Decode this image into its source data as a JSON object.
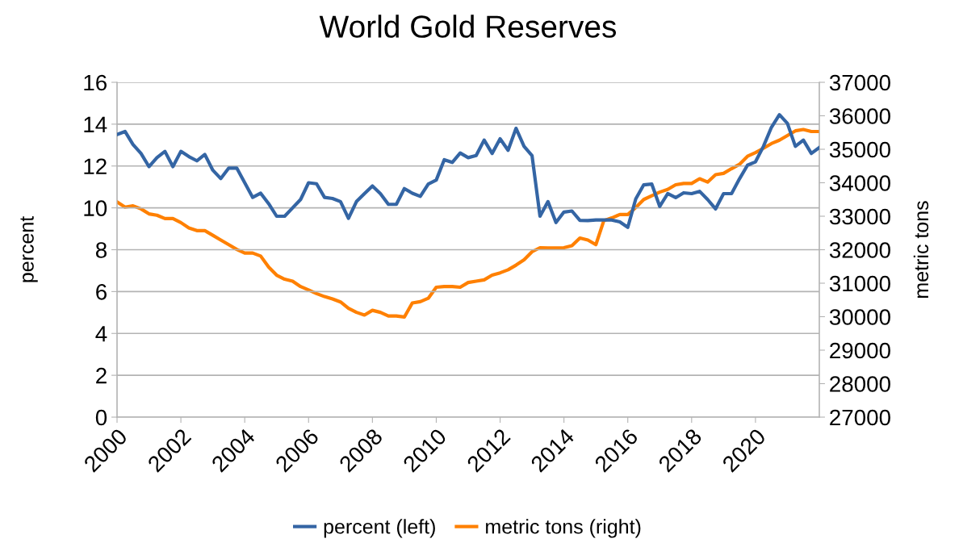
{
  "chart_data": {
    "type": "line",
    "title": "World Gold Reserves",
    "ylabel": "percent",
    "y2label": "metric tons",
    "x": [
      2000.0,
      2000.25,
      2000.5,
      2000.75,
      2001.0,
      2001.25,
      2001.5,
      2001.75,
      2002.0,
      2002.25,
      2002.5,
      2002.75,
      2003.0,
      2003.25,
      2003.5,
      2003.75,
      2004.0,
      2004.25,
      2004.5,
      2004.75,
      2005.0,
      2005.25,
      2005.5,
      2005.75,
      2006.0,
      2006.25,
      2006.5,
      2006.75,
      2007.0,
      2007.25,
      2007.5,
      2007.75,
      2008.0,
      2008.25,
      2008.5,
      2008.75,
      2009.0,
      2009.25,
      2009.5,
      2009.75,
      2010.0,
      2010.25,
      2010.5,
      2010.75,
      2011.0,
      2011.25,
      2011.5,
      2011.75,
      2012.0,
      2012.25,
      2012.5,
      2012.75,
      2013.0,
      2013.25,
      2013.5,
      2013.75,
      2014.0,
      2014.25,
      2014.5,
      2014.75,
      2015.0,
      2015.25,
      2015.5,
      2015.75,
      2016.0,
      2016.25,
      2016.5,
      2016.75,
      2017.0,
      2017.25,
      2017.5,
      2017.75,
      2018.0,
      2018.25,
      2018.5,
      2018.75,
      2019.0,
      2019.25,
      2019.5,
      2019.75,
      2020.0,
      2020.25,
      2020.5,
      2020.75,
      2021.0,
      2021.25,
      2021.5,
      2021.75,
      2022.0
    ],
    "series": [
      {
        "name": "percent (left)",
        "color": "#3465a4",
        "values": [
          13.5,
          13.65,
          13.03,
          12.6,
          11.97,
          12.4,
          12.7,
          11.97,
          12.7,
          12.45,
          12.25,
          12.55,
          11.8,
          11.4,
          11.9,
          11.9,
          11.2,
          10.5,
          10.7,
          10.2,
          9.6,
          9.6,
          10.0,
          10.4,
          11.2,
          11.15,
          10.5,
          10.45,
          10.3,
          9.5,
          10.3,
          10.68,
          11.05,
          10.68,
          10.17,
          10.17,
          10.92,
          10.7,
          10.55,
          11.14,
          11.33,
          12.3,
          12.17,
          12.62,
          12.4,
          12.5,
          13.24,
          12.6,
          13.3,
          12.75,
          13.8,
          12.94,
          12.5,
          9.6,
          10.3,
          9.3,
          9.8,
          9.85,
          9.4,
          9.39,
          9.42,
          9.42,
          9.42,
          9.33,
          9.07,
          10.43,
          11.1,
          11.14,
          10.07,
          10.68,
          10.49,
          10.72,
          10.68,
          10.79,
          10.4,
          9.95,
          10.68,
          10.68,
          11.39,
          12.04,
          12.2,
          12.94,
          13.85,
          14.45,
          14.04,
          12.94,
          13.24,
          12.6,
          12.88
        ]
      },
      {
        "name": "metric tons (right)",
        "color": "#ff8000",
        "axis": "y2",
        "values": [
          33430,
          33270,
          33310,
          33220,
          33070,
          33030,
          32930,
          32930,
          32810,
          32650,
          32570,
          32570,
          32430,
          32290,
          32150,
          32010,
          31900,
          31900,
          31810,
          31480,
          31240,
          31120,
          31060,
          30900,
          30800,
          30690,
          30600,
          30530,
          30440,
          30250,
          30130,
          30050,
          30190,
          30130,
          30020,
          30020,
          29990,
          30410,
          30450,
          30550,
          30880,
          30900,
          30900,
          30880,
          31020,
          31060,
          31100,
          31240,
          31310,
          31400,
          31540,
          31700,
          31940,
          32060,
          32050,
          32050,
          32060,
          32120,
          32350,
          32290,
          32150,
          32870,
          32950,
          33050,
          33050,
          33260,
          33500,
          33610,
          33720,
          33800,
          33940,
          33980,
          33980,
          34120,
          34020,
          34240,
          34280,
          34420,
          34550,
          34790,
          34900,
          35030,
          35170,
          35270,
          35410,
          35550,
          35590,
          35530,
          35530
        ]
      }
    ],
    "xlim": [
      2000,
      2022
    ],
    "xticks": [
      2000,
      2002,
      2004,
      2006,
      2008,
      2010,
      2012,
      2014,
      2016,
      2018,
      2020
    ],
    "ylim": [
      0,
      16
    ],
    "yticks": [
      0,
      2,
      4,
      6,
      8,
      10,
      12,
      14,
      16
    ],
    "y2lim": [
      27000,
      37000
    ],
    "y2ticks": [
      27000,
      28000,
      29000,
      30000,
      31000,
      32000,
      33000,
      34000,
      35000,
      36000,
      37000
    ],
    "grid": "y",
    "legend": "bottom",
    "marker": "none",
    "line_style": "solid"
  }
}
